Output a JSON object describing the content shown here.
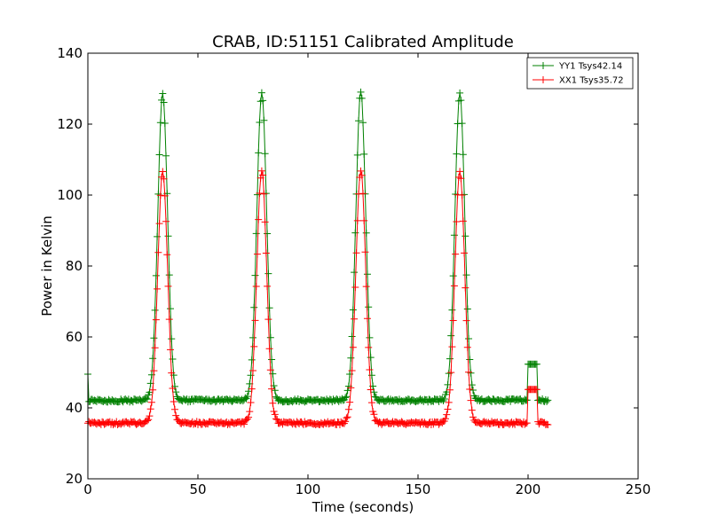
{
  "chart_data": {
    "type": "line",
    "title": "CRAB, ID:51151 Calibrated Amplitude",
    "xlabel": "Time (seconds)",
    "ylabel": "Power in Kelvin",
    "xlim": [
      0,
      250
    ],
    "ylim": [
      20,
      140
    ],
    "xticks": [
      0,
      50,
      100,
      150,
      200,
      250
    ],
    "yticks": [
      20,
      40,
      60,
      80,
      100,
      120,
      140
    ],
    "grid": false,
    "legend_position": "top-right",
    "marker": "+",
    "series": [
      {
        "name": "YY1 Tsys42.14",
        "color": "#008000",
        "baseline": 42.1,
        "peaks": [
          {
            "center": 34,
            "height": 128.5
          },
          {
            "center": 79,
            "height": 128.8
          },
          {
            "center": 124,
            "height": 129.0
          },
          {
            "center": 169,
            "height": 128.6
          }
        ],
        "start_value": 49.5,
        "cal_step": {
          "start": 200,
          "end": 204,
          "value": 52.3
        },
        "end_time": 209
      },
      {
        "name": "XX1 Tsys35.72",
        "color": "#ff0000",
        "baseline": 35.7,
        "peaks": [
          {
            "center": 34,
            "height": 106.5
          },
          {
            "center": 79,
            "height": 107.0
          },
          {
            "center": 124,
            "height": 107.2
          },
          {
            "center": 169,
            "height": 106.8
          }
        ],
        "start_value": 35.7,
        "cal_step": {
          "start": 200,
          "end": 204,
          "value": 45.2
        },
        "end_time": 209
      }
    ]
  }
}
